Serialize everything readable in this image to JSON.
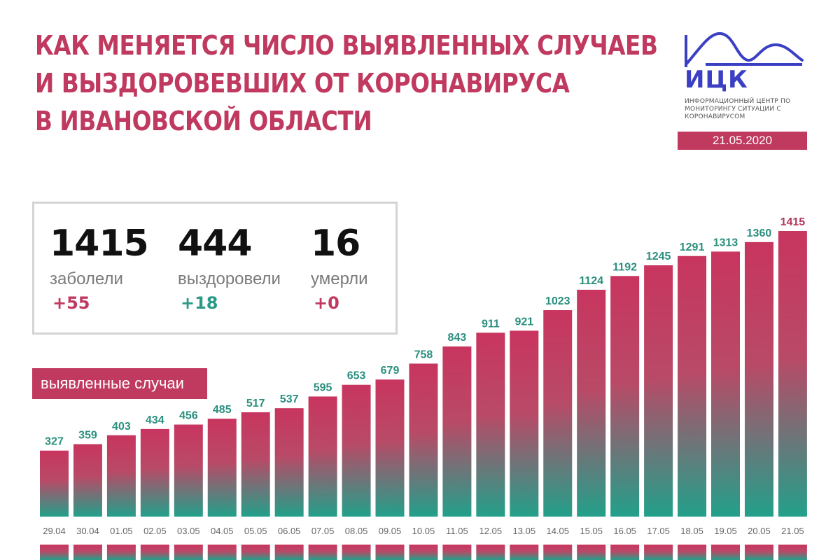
{
  "title": {
    "lines": [
      "КАК МЕНЯЕТСЯ ЧИСЛО ВЫЯВЛЕННЫХ СЛУЧАЕВ",
      "И ВЫЗДОРОВЕВШИХ ОТ КОРОНАВИРУСА",
      "В ИВАНОВСКОЙ ОБЛАСТИ"
    ]
  },
  "logo": {
    "abbr": "ИЦК",
    "description": "ИНФОРМАЦИОННЫЙ ЦЕНТР ПО МОНИТОРИНГУ СИТУАЦИИ С КОРОНАВИРУСОМ",
    "date": "21.05.2020",
    "icon": "wave-logo-icon"
  },
  "stats": [
    {
      "value": "1415",
      "label": "заболели",
      "delta": "+55",
      "delta_color": "#c0395f"
    },
    {
      "value": "444",
      "label": "выздоровели",
      "delta": "+18",
      "delta_color": "#2a9a86"
    },
    {
      "value": "16",
      "label": "умерли",
      "delta": "+0",
      "delta_color": "#c0395f"
    }
  ],
  "series_label": "выявленные случаи",
  "colors": {
    "accent": "#c0395f",
    "teal": "#2a9a86",
    "label_teal": "#2a8f7e",
    "label_last": "#b3365c"
  },
  "chart_data": {
    "type": "bar",
    "categories": [
      "29.04",
      "30.04",
      "01.05",
      "02.05",
      "03.05",
      "04.05",
      "05.05",
      "06.05",
      "07.05",
      "08.05",
      "09.05",
      "10.05",
      "11.05",
      "12.05",
      "13.05",
      "14.05",
      "15.05",
      "16.05",
      "17.05",
      "18.05",
      "19.05",
      "20.05",
      "21.05"
    ],
    "series": [
      {
        "name": "выявленные случаи",
        "values": [
          327,
          359,
          403,
          434,
          456,
          485,
          517,
          537,
          595,
          653,
          679,
          758,
          843,
          911,
          921,
          1023,
          1124,
          1192,
          1245,
          1291,
          1313,
          1360,
          1415
        ]
      }
    ],
    "title": "",
    "xlabel": "",
    "ylabel": "",
    "ylim": [
      0,
      1415
    ]
  }
}
